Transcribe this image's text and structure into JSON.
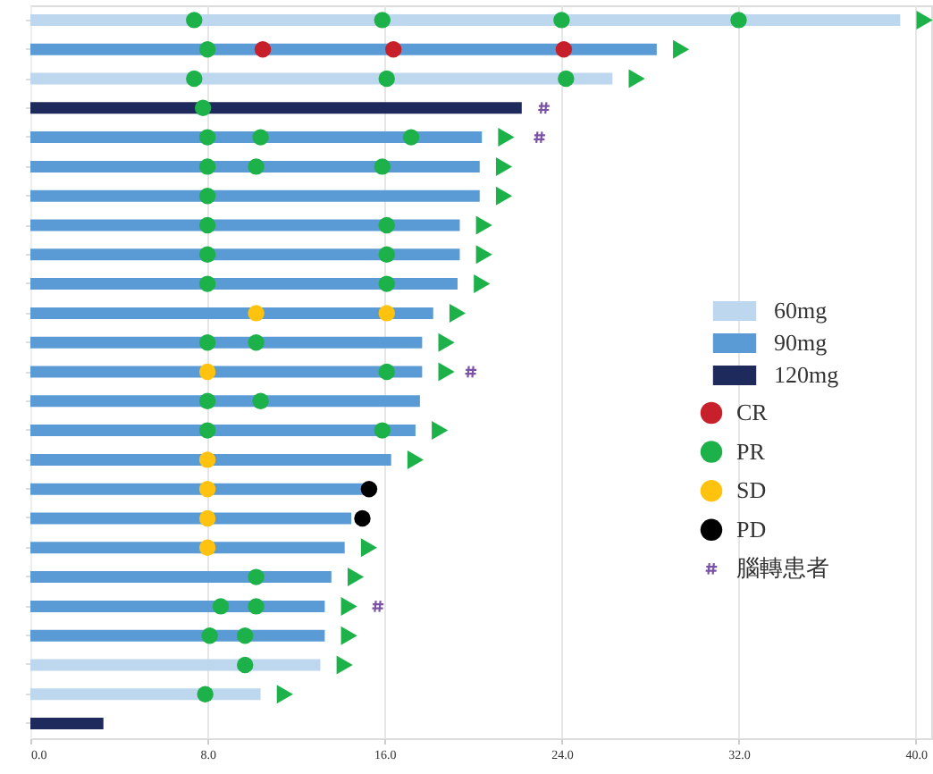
{
  "chart_data": {
    "type": "bar",
    "orientation": "horizontal",
    "legend": "right",
    "grid": "x",
    "tick_labels": "x",
    "categories": [
      null,
      null,
      null,
      null,
      null,
      null,
      null,
      null,
      null,
      null,
      null,
      null,
      null,
      null,
      null,
      null,
      null,
      null,
      null,
      null,
      null,
      null,
      null,
      null,
      null
    ],
    "xlim": [
      0,
      40.7
    ],
    "xticks": [
      {
        "value": 0,
        "label": "0.0"
      },
      {
        "value": 8,
        "label": "8.0"
      },
      {
        "value": 16,
        "label": "16.0"
      },
      {
        "value": 24,
        "label": "24.0"
      },
      {
        "value": 32,
        "label": "32.0"
      },
      {
        "value": 40,
        "label": "40.0"
      }
    ],
    "series": [
      {
        "name": "60mg",
        "color": "#bdd7ee",
        "values": [
          39.3,
          null,
          26.3,
          null,
          null,
          null,
          null,
          null,
          null,
          null,
          null,
          null,
          null,
          null,
          null,
          null,
          null,
          null,
          null,
          null,
          null,
          null,
          13.1,
          10.4,
          null
        ]
      },
      {
        "name": "90mg",
        "color": "#5b9bd5",
        "values": [
          null,
          28.3,
          null,
          null,
          20.4,
          20.3,
          20.3,
          19.4,
          19.4,
          19.3,
          18.2,
          17.7,
          17.7,
          17.6,
          17.4,
          16.3,
          15.1,
          14.5,
          14.2,
          13.6,
          13.3,
          13.3,
          null,
          null,
          null
        ]
      },
      {
        "name": "120mg",
        "color": "#1f2a5c",
        "values": [
          null,
          null,
          null,
          22.2,
          null,
          null,
          null,
          null,
          null,
          null,
          null,
          null,
          null,
          null,
          null,
          null,
          null,
          null,
          null,
          null,
          null,
          null,
          null,
          null,
          3.3
        ]
      },
      {
        "type": "scatter",
        "marker": "triangle",
        "color": "#1db14a",
        "values": [
          40.4,
          29.4,
          27.4,
          null,
          21.5,
          21.4,
          21.4,
          20.5,
          20.5,
          20.4,
          19.3,
          18.8,
          18.8,
          null,
          18.5,
          17.4,
          null,
          null,
          15.3,
          14.7,
          14.4,
          14.4,
          14.2,
          11.5,
          null
        ]
      },
      {
        "name": "CR",
        "type": "scatter",
        "marker": "circle",
        "color": "#c8202a",
        "values": [
          null,
          10.5,
          null,
          null,
          null,
          null,
          null,
          null,
          null,
          null,
          null,
          null,
          null,
          null,
          null,
          null,
          null,
          null,
          null,
          null,
          null,
          null,
          null,
          null,
          null
        ]
      },
      {
        "name": "PR",
        "type": "scatter",
        "marker": "circle",
        "color": "#1db14a",
        "values": [
          7.4,
          8.0,
          7.4,
          7.8,
          8.0,
          8.0,
          8.0,
          8.0,
          8.0,
          8.0,
          null,
          8.0,
          16.1,
          8.0,
          8.0,
          null,
          null,
          null,
          null,
          10.2,
          8.6,
          8.1,
          9.7,
          7.9,
          null
        ]
      },
      {
        "name": "SD",
        "type": "scatter",
        "marker": "circle",
        "color": "#ffc20e",
        "values": [
          null,
          null,
          null,
          null,
          null,
          null,
          null,
          null,
          null,
          null,
          10.2,
          null,
          8.0,
          null,
          null,
          8.0,
          8.0,
          8.0,
          8.0,
          null,
          null,
          null,
          null,
          null,
          null
        ]
      },
      {
        "name": "PD",
        "type": "scatter",
        "marker": "circle",
        "color": "#000000",
        "values": [
          null,
          null,
          null,
          null,
          null,
          null,
          null,
          null,
          null,
          null,
          null,
          null,
          null,
          null,
          null,
          null,
          15.3,
          15.0,
          null,
          null,
          null,
          null,
          null,
          null,
          null
        ]
      },
      {
        "name": "腦轉患者",
        "type": "scatter",
        "marker": "cross",
        "color": "#7b52a6",
        "values": [
          null,
          null,
          null,
          23.2,
          23.0,
          null,
          null,
          null,
          null,
          null,
          null,
          null,
          19.9,
          null,
          null,
          null,
          null,
          null,
          null,
          null,
          15.7,
          null,
          null,
          null,
          null
        ]
      },
      {
        "type": "scatter",
        "marker": "circle",
        "color": "#c8202a",
        "values": [
          null,
          16.4,
          null,
          null,
          null,
          null,
          null,
          null,
          null,
          null,
          null,
          null,
          null,
          null,
          null,
          null,
          null,
          null,
          null,
          null,
          null,
          null,
          null,
          null,
          null
        ]
      },
      {
        "type": "scatter",
        "marker": "circle",
        "color": "#c8202a",
        "values": [
          null,
          24.1,
          null,
          null,
          null,
          null,
          null,
          null,
          null,
          null,
          null,
          null,
          null,
          null,
          null,
          null,
          null,
          null,
          null,
          null,
          null,
          null,
          null,
          null,
          null
        ]
      },
      {
        "type": "scatter",
        "marker": "circle",
        "color": "#1db14a",
        "values": [
          15.9,
          null,
          16.1,
          null,
          10.4,
          10.2,
          null,
          16.1,
          16.1,
          16.1,
          null,
          10.2,
          null,
          10.4,
          15.9,
          null,
          null,
          null,
          null,
          null,
          10.2,
          9.7,
          null,
          null,
          null
        ]
      },
      {
        "type": "scatter",
        "marker": "circle",
        "color": "#1db14a",
        "values": [
          24.0,
          null,
          24.2,
          null,
          17.2,
          15.9,
          null,
          null,
          null,
          null,
          null,
          null,
          null,
          null,
          null,
          null,
          null,
          null,
          null,
          null,
          null,
          null,
          null,
          null,
          null
        ]
      },
      {
        "type": "scatter",
        "marker": "circle",
        "color": "#1db14a",
        "values": [
          32.0,
          null,
          null,
          null,
          null,
          null,
          null,
          null,
          null,
          null,
          null,
          null,
          null,
          null,
          null,
          null,
          null,
          null,
          null,
          null,
          null,
          null,
          null,
          null,
          null
        ]
      },
      {
        "type": "scatter",
        "marker": "circle",
        "color": "#ffc20e",
        "values": [
          null,
          null,
          null,
          null,
          null,
          null,
          null,
          null,
          null,
          null,
          16.1,
          null,
          null,
          null,
          null,
          null,
          null,
          null,
          null,
          null,
          null,
          null,
          null,
          null,
          null
        ]
      }
    ]
  }
}
